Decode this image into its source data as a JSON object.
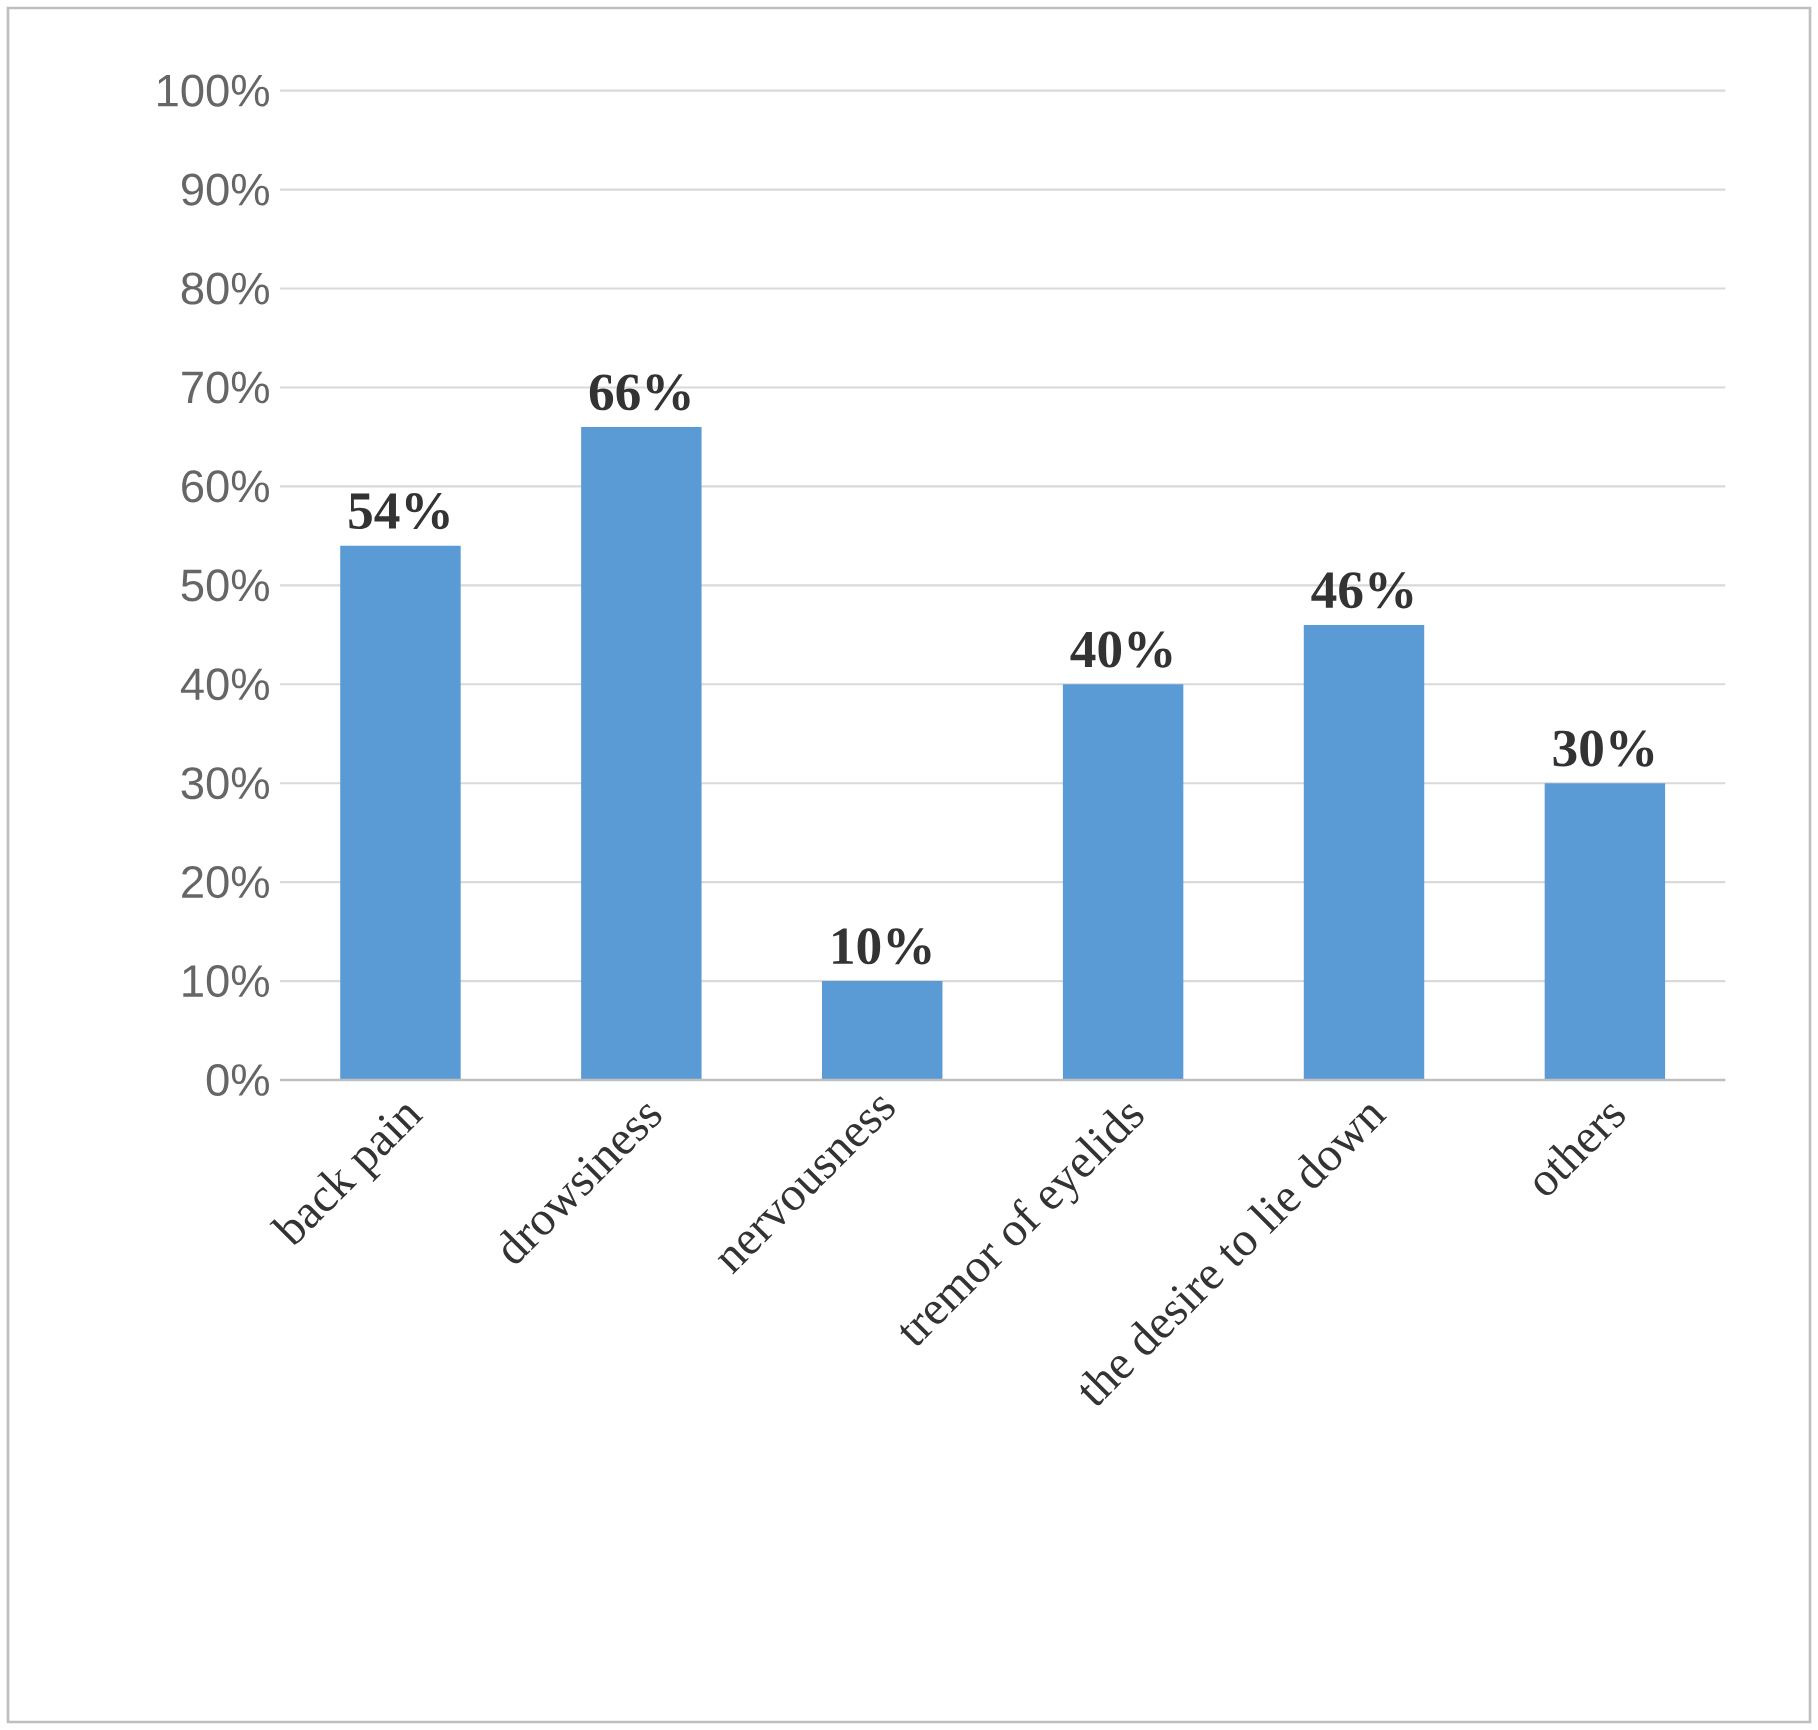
{
  "chart_data": {
    "type": "bar",
    "categories": [
      "back pain",
      "drowsiness",
      "nervousness",
      "tremor of eyelids",
      "the desire to lie down",
      "others"
    ],
    "values": [
      54,
      66,
      10,
      40,
      46,
      30
    ],
    "value_labels": [
      "54%",
      "66%",
      "10%",
      "40%",
      "46%",
      "30%"
    ],
    "color": "#5b9bd5",
    "ylim": [
      0,
      100
    ],
    "yticks": [
      {
        "value": 0,
        "label": "0%"
      },
      {
        "value": 10,
        "label": "10%"
      },
      {
        "value": 20,
        "label": "20%"
      },
      {
        "value": 30,
        "label": "30%"
      },
      {
        "value": 40,
        "label": "40%"
      },
      {
        "value": 50,
        "label": "50%"
      },
      {
        "value": 60,
        "label": "60%"
      },
      {
        "value": 70,
        "label": "70%"
      },
      {
        "value": 80,
        "label": "80%"
      },
      {
        "value": 90,
        "label": "90%"
      },
      {
        "value": 100,
        "label": "100%"
      }
    ],
    "grid": "y"
  }
}
